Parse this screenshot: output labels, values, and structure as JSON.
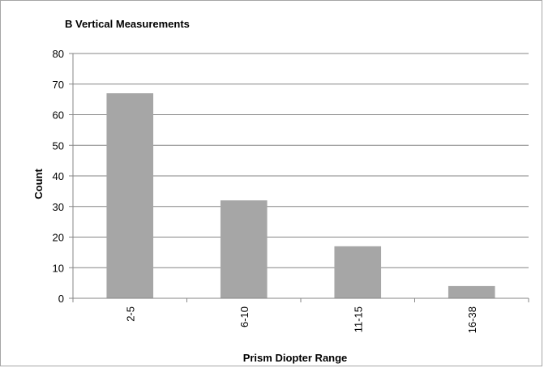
{
  "chart_data": {
    "type": "bar",
    "title": "B  Vertical Measurements",
    "xlabel": "Prism Diopter Range",
    "ylabel": "Count",
    "categories": [
      "2-5",
      "6-10",
      "11-15",
      "16-38"
    ],
    "values": [
      67,
      32,
      17,
      4
    ],
    "ylim": [
      0,
      80
    ],
    "yticks": [
      0,
      10,
      20,
      30,
      40,
      50,
      60,
      70,
      80
    ],
    "grid": true,
    "legend": "none",
    "bar_color": "#a6a6a6",
    "grid_color": "#868686"
  }
}
